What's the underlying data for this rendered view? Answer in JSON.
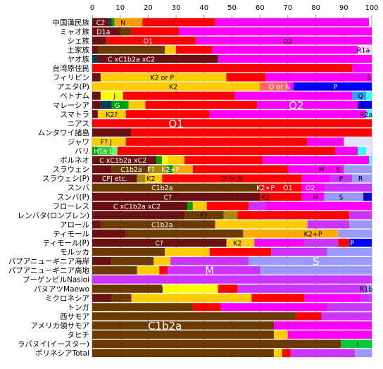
{
  "chart_data": {
    "type": "bar",
    "orientation": "horizontal",
    "stacked": true,
    "xlim": [
      0,
      100
    ],
    "xticks": [
      0,
      10,
      20,
      30,
      40,
      50,
      60,
      70,
      80,
      90,
      100
    ],
    "grid": true,
    "legend": "none",
    "colors": {
      "C": "#6b1010",
      "C1b2a": "#6b3a00",
      "D": "#003b5c",
      "N": "#ff9a00",
      "O1": "#ff0000",
      "O2": "#ff00ff",
      "K2": "#ffcc00",
      "F": "#aa8800",
      "J": "#ffff00",
      "G": "#00a000",
      "H": "#33cc33",
      "L": "#66ff66",
      "M": "#cc33ff",
      "S": "#9999ff",
      "P": "#0000ff",
      "Q": "#3399ff",
      "R": "#33ffff",
      "K2+P": "#ffaa00",
      "E": "#888888",
      "I": "#00cc33",
      "O": "#ff6666",
      "R1a": "#ffccff",
      "A": "#555555",
      "other": "#e0e0ff"
    },
    "rows": [
      {
        "label": "中国漢民族",
        "segments": [
          [
            "C",
            6
          ],
          [
            "D",
            1
          ],
          [
            "G",
            1
          ],
          [
            "N",
            10
          ],
          [
            "O1",
            26
          ],
          [
            "O2",
            55
          ]
        ],
        "texts": [
          {
            "t": "C2",
            "x": 3,
            "c": "w"
          },
          {
            "t": "N",
            "x": 11
          }
        ]
      },
      {
        "label": "ミャオ族",
        "segments": [
          [
            "C",
            10
          ],
          [
            "C1b2a",
            4
          ],
          [
            "O1",
            17
          ],
          [
            "O2",
            69
          ]
        ],
        "texts": [
          {
            "t": "D1a",
            "x": 4,
            "c": "w"
          }
        ]
      },
      {
        "label": "シェ族",
        "segments": [
          [
            "C",
            5
          ],
          [
            "O1",
            32
          ],
          [
            "O2",
            63
          ]
        ],
        "texts": [
          {
            "t": "O1",
            "x": 20,
            "c": "w"
          },
          {
            "t": "O2",
            "x": 70
          }
        ]
      },
      {
        "label": "土家族",
        "segments": [
          [
            "C",
            2
          ],
          [
            "C1b2a",
            24
          ],
          [
            "K2",
            4
          ],
          [
            "O1",
            13
          ],
          [
            "O2",
            52
          ],
          [
            "R1a",
            5
          ]
        ],
        "texts": [
          {
            "t": "R1a",
            "x": 97
          }
        ]
      },
      {
        "label": "ヤオ族",
        "segments": [
          [
            "D",
            2
          ],
          [
            "C",
            43
          ],
          [
            "O2",
            55
          ]
        ],
        "texts": [
          {
            "t": "C xC1b2a xC2",
            "x": 14,
            "c": "w"
          }
        ]
      },
      {
        "label": "台湾原住民",
        "segments": [
          [
            "O1",
            93
          ],
          [
            "O2",
            7
          ]
        ],
        "texts": []
      },
      {
        "label": "フィリピン",
        "segments": [
          [
            "C",
            3
          ],
          [
            "K2",
            45
          ],
          [
            "O1",
            14
          ],
          [
            "O2",
            38
          ]
        ],
        "texts": [
          {
            "t": "K2 or P",
            "x": 25
          },
          {
            "t": "S",
            "x": 99
          }
        ]
      },
      {
        "label": "アエタ(P)",
        "segments": [
          [
            "K2",
            60
          ],
          [
            "O",
            10
          ],
          [
            "O2",
            2
          ],
          [
            "P",
            28
          ]
        ],
        "texts": [
          {
            "t": "K2",
            "x": 29
          },
          {
            "t": "O or N",
            "x": 67,
            "c": "w"
          },
          {
            "t": "P",
            "x": 87,
            "c": "w"
          }
        ]
      },
      {
        "label": "ベトナム",
        "segments": [
          [
            "C",
            3
          ],
          [
            "J",
            8
          ],
          [
            "O1",
            40
          ],
          [
            "O2",
            42
          ],
          [
            "Q",
            5
          ],
          [
            "R",
            2
          ]
        ],
        "texts": [
          {
            "t": "J",
            "x": 8
          },
          {
            "t": "Q",
            "x": 96
          }
        ]
      },
      {
        "label": "マレーシア",
        "segments": [
          [
            "C",
            3
          ],
          [
            "D",
            4
          ],
          [
            "G",
            6
          ],
          [
            "K2",
            6
          ],
          [
            "O1",
            40
          ],
          [
            "O2",
            36
          ],
          [
            "P",
            5
          ]
        ],
        "texts": [
          {
            "t": "G",
            "x": 9,
            "c": "w"
          },
          {
            "t": "O2",
            "x": 73,
            "c": "w",
            "big": true
          },
          {
            "t": "M",
            "x": 96
          }
        ]
      },
      {
        "label": "スマトラ",
        "segments": [
          [
            "C",
            2
          ],
          [
            "K2",
            10
          ],
          [
            "O1",
            30
          ],
          [
            "O2",
            56
          ],
          [
            "R",
            2
          ]
        ],
        "texts": [
          {
            "t": "K2?",
            "x": 7
          },
          {
            "t": "R2a",
            "x": 98
          }
        ]
      },
      {
        "label": "ニアス",
        "segments": [
          [
            "O1",
            100
          ]
        ],
        "texts": [
          {
            "t": "O1",
            "x": 30,
            "c": "w",
            "big": true
          }
        ]
      },
      {
        "label": "ムンタワイ諸島",
        "segments": [
          [
            "C",
            14
          ],
          [
            "O1",
            86
          ]
        ],
        "texts": []
      },
      {
        "label": "ジャワ",
        "segments": [
          [
            "K2",
            12
          ],
          [
            "O1",
            65
          ],
          [
            "O2",
            13
          ],
          [
            "other",
            10
          ]
        ],
        "texts": [
          {
            "t": "F? J",
            "x": 5
          }
        ]
      },
      {
        "label": "バリ",
        "segments": [
          [
            "G",
            2
          ],
          [
            "H",
            5
          ],
          [
            "L",
            2
          ],
          [
            "O1",
            78
          ],
          [
            "O2",
            8
          ],
          [
            "R",
            3
          ],
          [
            "other",
            2
          ]
        ],
        "texts": [
          {
            "t": "H1a L",
            "x": 4,
            "c": "w"
          }
        ]
      },
      {
        "label": "ボルネオ",
        "segments": [
          [
            "C",
            23
          ],
          [
            "G",
            2
          ],
          [
            "J",
            2
          ],
          [
            "K2",
            6
          ],
          [
            "O1",
            28
          ],
          [
            "O2",
            38
          ],
          [
            "R",
            1
          ]
        ],
        "texts": [
          {
            "t": "C xC1b2a xC2",
            "x": 11,
            "c": "w"
          }
        ]
      },
      {
        "label": "スラウェシ",
        "segments": [
          [
            "C",
            7
          ],
          [
            "C1b2a",
            13
          ],
          [
            "F",
            7
          ],
          [
            "G",
            2
          ],
          [
            "K2+P",
            7
          ],
          [
            "O1",
            34
          ],
          [
            "O2",
            20
          ],
          [
            "S",
            10
          ]
        ],
        "texts": [
          {
            "t": "C1b2a",
            "x": 14,
            "c": "w"
          },
          {
            "t": "F?",
            "x": 21,
            "c": "w"
          },
          {
            "t": "K2+P",
            "x": 28,
            "c": "w"
          },
          {
            "t": "M",
            "x": 82
          },
          {
            "t": "S",
            "x": 88
          }
        ]
      },
      {
        "label": "スラウェシ(P)",
        "segments": [
          [
            "C",
            16
          ],
          [
            "F",
            3
          ],
          [
            "K2",
            6
          ],
          [
            "O1",
            50
          ],
          [
            "O2",
            10
          ],
          [
            "M",
            8
          ],
          [
            "S",
            7
          ]
        ],
        "texts": [
          {
            "t": "CFJ etc.",
            "x": 8,
            "c": "w"
          },
          {
            "t": "K2",
            "x": 21
          },
          {
            "t": "O or N",
            "x": 50
          },
          {
            "t": "P",
            "x": 89
          },
          {
            "t": "R",
            "x": 96
          }
        ]
      },
      {
        "label": "スンバ",
        "segments": [
          [
            "C1b2a",
            60
          ],
          [
            "O1",
            15
          ],
          [
            "O2",
            8
          ],
          [
            "M",
            17
          ]
        ],
        "texts": [
          {
            "t": "C1b2a",
            "x": 25,
            "c": "w"
          },
          {
            "t": "K2+P",
            "x": 62,
            "c": "w"
          },
          {
            "t": "O1",
            "x": 70,
            "c": "w"
          },
          {
            "t": "O2",
            "x": 78,
            "c": "w"
          }
        ]
      },
      {
        "label": "スンバ(P)",
        "segments": [
          [
            "C",
            60
          ],
          [
            "O1",
            15
          ],
          [
            "O2",
            8
          ],
          [
            "S",
            14
          ],
          [
            "P",
            3
          ]
        ],
        "texts": [
          {
            "t": "C?",
            "x": 27,
            "c": "w"
          },
          {
            "t": "K2",
            "x": 62
          },
          {
            "t": "M",
            "x": 80
          },
          {
            "t": "S",
            "x": 89
          },
          {
            "t": "P",
            "x": 98
          }
        ]
      },
      {
        "label": "フローレス",
        "segments": [
          [
            "C",
            34
          ],
          [
            "G",
            2
          ],
          [
            "K2",
            5
          ],
          [
            "O1",
            15
          ],
          [
            "M",
            6
          ],
          [
            "O2",
            38
          ]
        ],
        "texts": [
          {
            "t": "C xC1b2a xC2",
            "x": 16,
            "c": "w"
          }
        ]
      },
      {
        "label": "レンバタ(ロンブレン)",
        "segments": [
          [
            "C",
            33
          ],
          [
            "C1b2a",
            14
          ],
          [
            "F",
            5
          ],
          [
            "O1",
            40
          ],
          [
            "M",
            8
          ]
        ],
        "texts": [
          {
            "t": "F?",
            "x": 40
          }
        ]
      },
      {
        "label": "アロール",
        "segments": [
          [
            "C",
            3
          ],
          [
            "C1b2a",
            41
          ],
          [
            "K2",
            33
          ],
          [
            "M",
            15
          ],
          [
            "S",
            8
          ]
        ],
        "texts": [
          {
            "t": "C1b2a",
            "x": 25,
            "c": "w"
          }
        ]
      },
      {
        "label": "ティモール",
        "segments": [
          [
            "C",
            12
          ],
          [
            "C1b2a",
            42
          ],
          [
            "K2+P",
            34
          ],
          [
            "S",
            12
          ]
        ],
        "texts": [
          {
            "t": "K2+P",
            "x": 79
          }
        ]
      },
      {
        "label": "ティモール(P)",
        "segments": [
          [
            "C",
            48
          ],
          [
            "K2",
            10
          ],
          [
            "O2",
            18
          ],
          [
            "M",
            12
          ],
          [
            "O1",
            4
          ],
          [
            "P",
            8
          ]
        ],
        "texts": [
          {
            "t": "C?",
            "x": 24,
            "c": "w"
          },
          {
            "t": "K2",
            "x": 52
          },
          {
            "t": "P",
            "x": 93,
            "c": "w"
          }
        ]
      },
      {
        "label": "モルッカ",
        "segments": [
          [
            "C1b2a",
            26
          ],
          [
            "K2",
            16
          ],
          [
            "O1",
            22
          ],
          [
            "M",
            20
          ],
          [
            "S",
            16
          ]
        ],
        "texts": []
      },
      {
        "label": "パプアニューギニア海岸",
        "segments": [
          [
            "C",
            7
          ],
          [
            "C1b2a",
            15
          ],
          [
            "K2",
            6
          ],
          [
            "M",
            28
          ],
          [
            "S",
            44
          ]
        ],
        "texts": [
          {
            "t": "S",
            "x": 80,
            "c": "w",
            "big": true
          }
        ]
      },
      {
        "label": "パプアニューギニア高地",
        "segments": [
          [
            "C1b2a",
            16
          ],
          [
            "K2",
            8
          ],
          [
            "O1",
            3
          ],
          [
            "M",
            33
          ],
          [
            "S",
            40
          ]
        ],
        "texts": [
          {
            "t": "M",
            "x": 42,
            "c": "w",
            "big": true
          }
        ]
      },
      {
        "label": "ブーゲンビルNasioi",
        "segments": [
          [
            "M",
            100
          ]
        ],
        "texts": []
      },
      {
        "label": "パヌアツMaewo",
        "segments": [
          [
            "C1b2a",
            25
          ],
          [
            "J",
            20
          ],
          [
            "O1",
            7
          ],
          [
            "M",
            46
          ],
          [
            "S",
            2
          ]
        ],
        "texts": [
          {
            "t": "J",
            "x": 25
          },
          {
            "t": "R1b",
            "x": 98
          }
        ]
      },
      {
        "label": "ミクロネシア",
        "segments": [
          [
            "C",
            7
          ],
          [
            "C1b2a",
            7
          ],
          [
            "K2",
            43
          ],
          [
            "O1",
            19
          ],
          [
            "O2",
            20
          ],
          [
            "M",
            4
          ]
        ],
        "texts": []
      },
      {
        "label": "トンガ",
        "segments": [
          [
            "C1b2a",
            36
          ],
          [
            "O1",
            10
          ],
          [
            "O2",
            38
          ],
          [
            "M",
            16
          ]
        ],
        "texts": []
      },
      {
        "label": "西サモア",
        "segments": [
          [
            "C1b2a",
            73
          ],
          [
            "O1",
            9
          ],
          [
            "M",
            18
          ]
        ],
        "texts": []
      },
      {
        "label": "アメリカ領サモア",
        "segments": [
          [
            "C1b2a",
            65
          ],
          [
            "O2",
            35
          ]
        ],
        "texts": [
          {
            "t": "C1b2a",
            "x": 26,
            "c": "w",
            "big": true
          }
        ]
      },
      {
        "label": "タヒチ",
        "segments": [
          [
            "C1b2a",
            65
          ],
          [
            "K2",
            5
          ],
          [
            "O2",
            30
          ]
        ],
        "texts": []
      },
      {
        "label": "ラパヌイ(イースター)",
        "segments": [
          [
            "C1b2a",
            89
          ],
          [
            "I",
            11
          ]
        ],
        "texts": [
          {
            "t": "I",
            "x": 95
          }
        ]
      },
      {
        "label": "ポリネシアTotal",
        "segments": [
          [
            "C1b2a",
            65
          ],
          [
            "K2",
            3
          ],
          [
            "O1",
            3
          ],
          [
            "M",
            23
          ],
          [
            "S",
            6
          ]
        ],
        "texts": []
      }
    ]
  }
}
